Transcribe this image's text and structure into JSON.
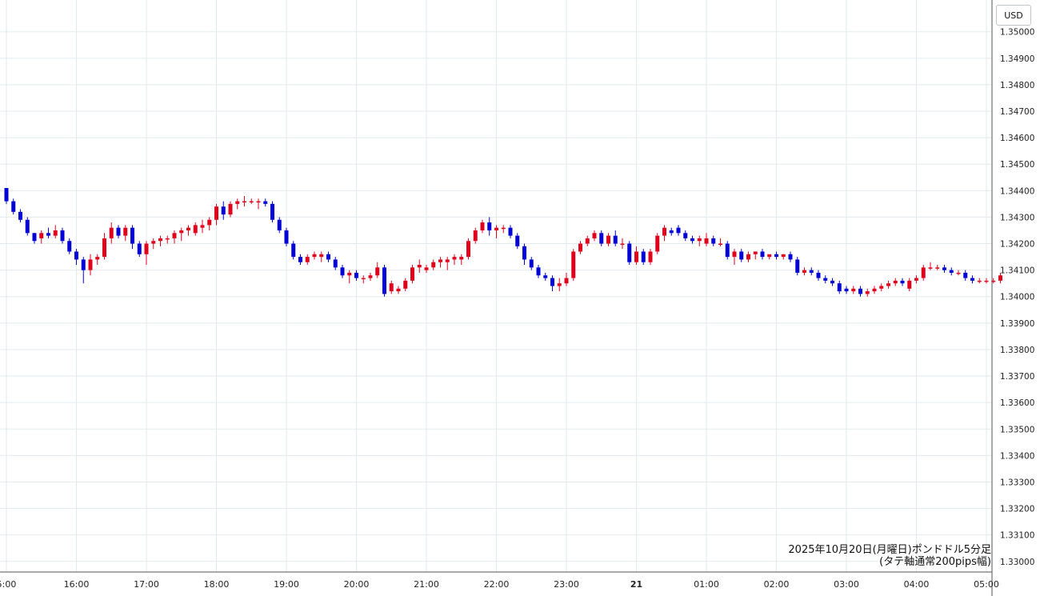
{
  "currency_label": "USD",
  "caption": {
    "line1": "2025年10月20日(月曜日)ポンドドル5分足",
    "line2": "(タテ軸通常200pips幅)"
  },
  "colors": {
    "up": "#e0001b",
    "down": "#0000d6",
    "grid": "#e3eaee"
  },
  "chart_data": {
    "type": "candlestick",
    "ylim": [
      1.3296,
      1.3512
    ],
    "y_ticks": [
      "1.35000",
      "1.34900",
      "1.34800",
      "1.34700",
      "1.34600",
      "1.34500",
      "1.34400",
      "1.34300",
      "1.34200",
      "1.34100",
      "1.34000",
      "1.33900",
      "1.33800",
      "1.33700",
      "1.33600",
      "1.33500",
      "1.33400",
      "1.33300",
      "1.33200",
      "1.33100",
      "1.33000"
    ],
    "x_ticks": [
      {
        "label": "5:00",
        "index": 0
      },
      {
        "label": "16:00",
        "index": 10
      },
      {
        "label": "17:00",
        "index": 20
      },
      {
        "label": "18:00",
        "index": 30
      },
      {
        "label": "19:00",
        "index": 40
      },
      {
        "label": "20:00",
        "index": 50
      },
      {
        "label": "21:00",
        "index": 60
      },
      {
        "label": "22:00",
        "index": 70
      },
      {
        "label": "23:00",
        "index": 80
      },
      {
        "label": "21",
        "index": 90,
        "bold": true
      },
      {
        "label": "01:00",
        "index": 100
      },
      {
        "label": "02:00",
        "index": 110
      },
      {
        "label": "03:00",
        "index": 120
      },
      {
        "label": "04:00",
        "index": 130
      },
      {
        "label": "05:00",
        "index": 140
      }
    ],
    "candles": [
      [
        1.3441,
        1.3441,
        1.3435,
        1.3436
      ],
      [
        1.3436,
        1.3437,
        1.3431,
        1.3432
      ],
      [
        1.3432,
        1.3433,
        1.3428,
        1.3429
      ],
      [
        1.3429,
        1.343,
        1.3423,
        1.3424
      ],
      [
        1.3424,
        1.3424,
        1.342,
        1.3421
      ],
      [
        1.3422,
        1.3425,
        1.342,
        1.3424
      ],
      [
        1.3424,
        1.3426,
        1.3422,
        1.3423
      ],
      [
        1.3423,
        1.3427,
        1.3422,
        1.3425
      ],
      [
        1.3425,
        1.3426,
        1.342,
        1.3421
      ],
      [
        1.3421,
        1.3422,
        1.3416,
        1.3417
      ],
      [
        1.3417,
        1.3418,
        1.3412,
        1.3414
      ],
      [
        1.3414,
        1.3415,
        1.3405,
        1.341
      ],
      [
        1.341,
        1.3416,
        1.3408,
        1.3414
      ],
      [
        1.3414,
        1.3416,
        1.3412,
        1.3415
      ],
      [
        1.3415,
        1.3424,
        1.3414,
        1.3422
      ],
      [
        1.3422,
        1.3428,
        1.342,
        1.3426
      ],
      [
        1.3426,
        1.3427,
        1.3422,
        1.3423
      ],
      [
        1.3423,
        1.3427,
        1.3421,
        1.3426
      ],
      [
        1.3426,
        1.3427,
        1.3418,
        1.342
      ],
      [
        1.342,
        1.3421,
        1.3415,
        1.3416
      ],
      [
        1.3416,
        1.3421,
        1.3412,
        1.342
      ],
      [
        1.342,
        1.3422,
        1.3418,
        1.3421
      ],
      [
        1.3421,
        1.3423,
        1.3419,
        1.3422
      ],
      [
        1.3422,
        1.3423,
        1.342,
        1.3422
      ],
      [
        1.3422,
        1.3425,
        1.342,
        1.3424
      ],
      [
        1.3424,
        1.3426,
        1.3421,
        1.3425
      ],
      [
        1.3425,
        1.3427,
        1.3423,
        1.3426
      ],
      [
        1.3424,
        1.3428,
        1.3423,
        1.3427
      ],
      [
        1.3426,
        1.3429,
        1.3424,
        1.3427
      ],
      [
        1.3427,
        1.343,
        1.3425,
        1.3429
      ],
      [
        1.3429,
        1.3435,
        1.3427,
        1.3434
      ],
      [
        1.3434,
        1.3436,
        1.3429,
        1.3431
      ],
      [
        1.3431,
        1.3436,
        1.343,
        1.3435
      ],
      [
        1.3435,
        1.3437,
        1.3433,
        1.3436
      ],
      [
        1.3436,
        1.3438,
        1.3434,
        1.3436
      ],
      [
        1.3436,
        1.3437,
        1.3435,
        1.3436
      ],
      [
        1.3436,
        1.3437,
        1.3433,
        1.3436
      ],
      [
        1.3436,
        1.3437,
        1.3434,
        1.3435
      ],
      [
        1.3435,
        1.3436,
        1.3428,
        1.3429
      ],
      [
        1.3429,
        1.343,
        1.3424,
        1.3425
      ],
      [
        1.3425,
        1.3426,
        1.3419,
        1.342
      ],
      [
        1.342,
        1.3421,
        1.3414,
        1.3415
      ],
      [
        1.3415,
        1.3416,
        1.3412,
        1.3413
      ],
      [
        1.3413,
        1.3416,
        1.3412,
        1.3415
      ],
      [
        1.3415,
        1.3417,
        1.3414,
        1.3416
      ],
      [
        1.3415,
        1.3417,
        1.3413,
        1.3416
      ],
      [
        1.3416,
        1.3417,
        1.3413,
        1.3414
      ],
      [
        1.3414,
        1.3415,
        1.341,
        1.3411
      ],
      [
        1.3411,
        1.3412,
        1.3407,
        1.3408
      ],
      [
        1.3408,
        1.341,
        1.3405,
        1.3409
      ],
      [
        1.3409,
        1.341,
        1.3406,
        1.3407
      ],
      [
        1.3407,
        1.3408,
        1.3405,
        1.3407
      ],
      [
        1.3407,
        1.3409,
        1.3406,
        1.3408
      ],
      [
        1.3408,
        1.3413,
        1.3407,
        1.3411
      ],
      [
        1.3411,
        1.3412,
        1.34,
        1.3401
      ],
      [
        1.3402,
        1.3406,
        1.3401,
        1.3405
      ],
      [
        1.3402,
        1.3404,
        1.3401,
        1.3403
      ],
      [
        1.3403,
        1.3407,
        1.3402,
        1.3406
      ],
      [
        1.3406,
        1.3412,
        1.3405,
        1.3411
      ],
      [
        1.3411,
        1.3414,
        1.3409,
        1.3412
      ],
      [
        1.341,
        1.3412,
        1.3409,
        1.3411
      ],
      [
        1.3411,
        1.3414,
        1.341,
        1.3413
      ],
      [
        1.3413,
        1.3415,
        1.3411,
        1.3414
      ],
      [
        1.3413,
        1.3415,
        1.341,
        1.3414
      ],
      [
        1.3414,
        1.3416,
        1.3412,
        1.3415
      ],
      [
        1.3414,
        1.3416,
        1.3412,
        1.3415
      ],
      [
        1.3415,
        1.3422,
        1.3414,
        1.3421
      ],
      [
        1.3421,
        1.3426,
        1.342,
        1.3425
      ],
      [
        1.3425,
        1.3429,
        1.3424,
        1.3428
      ],
      [
        1.3428,
        1.343,
        1.3423,
        1.3425
      ],
      [
        1.3425,
        1.3427,
        1.3422,
        1.3426
      ],
      [
        1.3426,
        1.3427,
        1.3424,
        1.3426
      ],
      [
        1.3426,
        1.3427,
        1.3422,
        1.3423
      ],
      [
        1.3423,
        1.3424,
        1.3418,
        1.3419
      ],
      [
        1.3419,
        1.342,
        1.3412,
        1.3414
      ],
      [
        1.3414,
        1.3415,
        1.341,
        1.3411
      ],
      [
        1.3411,
        1.3412,
        1.3407,
        1.3408
      ],
      [
        1.3408,
        1.3409,
        1.3406,
        1.3407
      ],
      [
        1.3407,
        1.3408,
        1.3402,
        1.3404
      ],
      [
        1.3404,
        1.3407,
        1.3402,
        1.3405
      ],
      [
        1.3405,
        1.3409,
        1.3404,
        1.3407
      ],
      [
        1.3407,
        1.3418,
        1.3406,
        1.3417
      ],
      [
        1.3417,
        1.3421,
        1.3416,
        1.342
      ],
      [
        1.342,
        1.3423,
        1.3419,
        1.3422
      ],
      [
        1.3422,
        1.3425,
        1.3421,
        1.3424
      ],
      [
        1.3424,
        1.3425,
        1.3419,
        1.342
      ],
      [
        1.342,
        1.3424,
        1.3419,
        1.3423
      ],
      [
        1.3423,
        1.3425,
        1.3419,
        1.342
      ],
      [
        1.342,
        1.3422,
        1.3418,
        1.342
      ],
      [
        1.342,
        1.3421,
        1.3412,
        1.3413
      ],
      [
        1.3413,
        1.3419,
        1.3412,
        1.3417
      ],
      [
        1.3417,
        1.3418,
        1.3412,
        1.3413
      ],
      [
        1.3413,
        1.3418,
        1.3412,
        1.3417
      ],
      [
        1.3417,
        1.3424,
        1.3416,
        1.3423
      ],
      [
        1.3423,
        1.3427,
        1.3421,
        1.3426
      ],
      [
        1.3425,
        1.3426,
        1.3423,
        1.3424
      ],
      [
        1.3426,
        1.3427,
        1.3423,
        1.3424
      ],
      [
        1.3424,
        1.3425,
        1.3421,
        1.3422
      ],
      [
        1.3422,
        1.3423,
        1.342,
        1.3421
      ],
      [
        1.3421,
        1.3423,
        1.3419,
        1.3422
      ],
      [
        1.342,
        1.3424,
        1.3419,
        1.3422
      ],
      [
        1.3422,
        1.3423,
        1.3419,
        1.342
      ],
      [
        1.342,
        1.3422,
        1.3419,
        1.342
      ],
      [
        1.342,
        1.3421,
        1.3414,
        1.3415
      ],
      [
        1.3415,
        1.3418,
        1.3412,
        1.3417
      ],
      [
        1.3417,
        1.3418,
        1.3413,
        1.3414
      ],
      [
        1.3414,
        1.3417,
        1.3413,
        1.3416
      ],
      [
        1.3416,
        1.3417,
        1.3414,
        1.3417
      ],
      [
        1.3417,
        1.3418,
        1.3414,
        1.3415
      ],
      [
        1.3415,
        1.3416,
        1.3414,
        1.3416
      ],
      [
        1.3416,
        1.3417,
        1.3414,
        1.3415
      ],
      [
        1.3415,
        1.3416,
        1.3414,
        1.3416
      ],
      [
        1.3416,
        1.3417,
        1.3413,
        1.3414
      ],
      [
        1.3414,
        1.3415,
        1.3408,
        1.3409
      ],
      [
        1.3409,
        1.3411,
        1.3408,
        1.341
      ],
      [
        1.341,
        1.3411,
        1.3408,
        1.3409
      ],
      [
        1.3409,
        1.341,
        1.3406,
        1.3407
      ],
      [
        1.3407,
        1.3408,
        1.3405,
        1.3406
      ],
      [
        1.3406,
        1.3407,
        1.3404,
        1.3405
      ],
      [
        1.3405,
        1.3406,
        1.3401,
        1.3402
      ],
      [
        1.3403,
        1.3404,
        1.3401,
        1.3402
      ],
      [
        1.3402,
        1.3404,
        1.3401,
        1.3403
      ],
      [
        1.3403,
        1.3404,
        1.34,
        1.3401
      ],
      [
        1.3401,
        1.3403,
        1.34,
        1.3402
      ],
      [
        1.3402,
        1.3404,
        1.3401,
        1.3403
      ],
      [
        1.3403,
        1.3405,
        1.3402,
        1.3404
      ],
      [
        1.3404,
        1.3406,
        1.3403,
        1.3405
      ],
      [
        1.3405,
        1.3407,
        1.3404,
        1.3406
      ],
      [
        1.3406,
        1.3407,
        1.3404,
        1.3405
      ],
      [
        1.3403,
        1.3407,
        1.3402,
        1.3406
      ],
      [
        1.3406,
        1.3408,
        1.3405,
        1.3407
      ],
      [
        1.3407,
        1.3412,
        1.3406,
        1.3411
      ],
      [
        1.3411,
        1.3413,
        1.341,
        1.3411
      ],
      [
        1.3411,
        1.3412,
        1.341,
        1.3411
      ],
      [
        1.3411,
        1.3412,
        1.3409,
        1.341
      ],
      [
        1.341,
        1.3411,
        1.3408,
        1.3409
      ],
      [
        1.3409,
        1.341,
        1.3408,
        1.3409
      ],
      [
        1.3409,
        1.341,
        1.3406,
        1.3407
      ],
      [
        1.3407,
        1.3408,
        1.3405,
        1.3406
      ],
      [
        1.3406,
        1.3407,
        1.3405,
        1.3406
      ],
      [
        1.3406,
        1.3407,
        1.3405,
        1.3406
      ],
      [
        1.3406,
        1.3407,
        1.3405,
        1.3406
      ],
      [
        1.3406,
        1.3409,
        1.3405,
        1.3408
      ]
    ]
  }
}
